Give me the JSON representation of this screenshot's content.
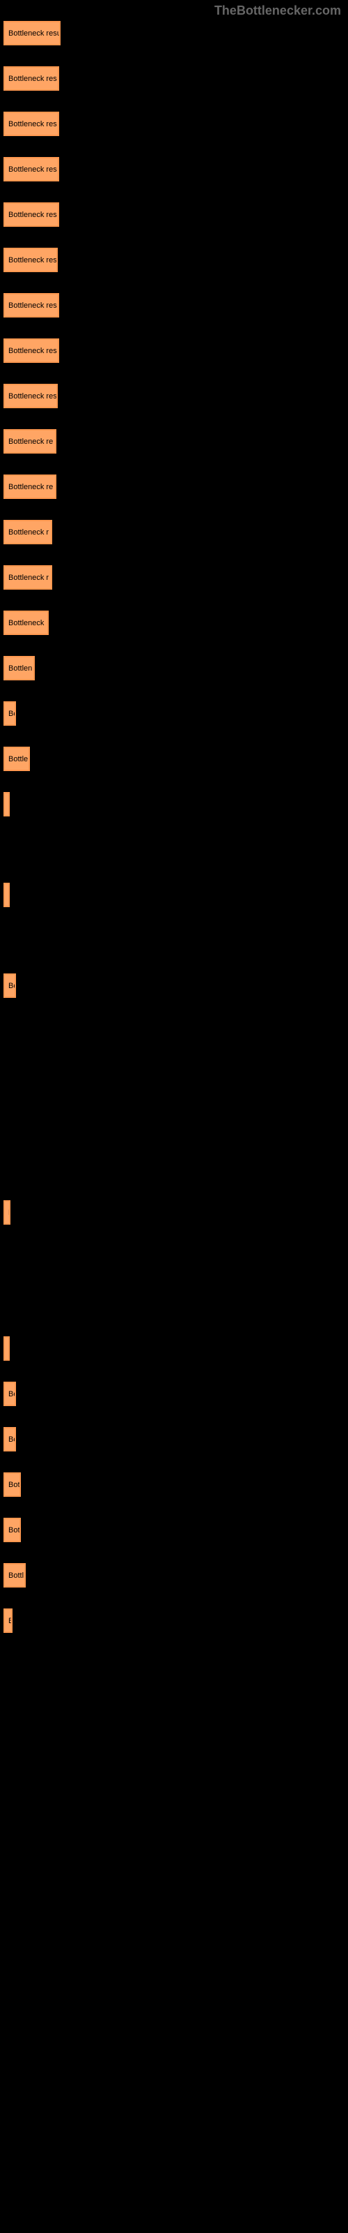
{
  "watermark": "TheBottlenecker.com",
  "chart": {
    "type": "bar",
    "background_color": "#000000",
    "bar_color": "#ffa564",
    "bar_border_color": "#ff9850",
    "text_color": "#000000",
    "font_size": 11,
    "bars": [
      {
        "label": "Bottleneck resu",
        "width": 82
      },
      {
        "label": "Bottleneck res",
        "width": 80
      },
      {
        "label": "Bottleneck res",
        "width": 80
      },
      {
        "label": "Bottleneck res",
        "width": 80
      },
      {
        "label": "Bottleneck res",
        "width": 80
      },
      {
        "label": "Bottleneck res",
        "width": 78
      },
      {
        "label": "Bottleneck res",
        "width": 80
      },
      {
        "label": "Bottleneck res",
        "width": 80
      },
      {
        "label": "Bottleneck res",
        "width": 78
      },
      {
        "label": "Bottleneck re",
        "width": 76
      },
      {
        "label": "Bottleneck re",
        "width": 76
      },
      {
        "label": "Bottleneck r",
        "width": 70
      },
      {
        "label": "Bottleneck r",
        "width": 70
      },
      {
        "label": "Bottleneck ",
        "width": 65
      },
      {
        "label": "Bottlen",
        "width": 45
      },
      {
        "label": "Bo",
        "width": 18
      },
      {
        "label": "Bottle",
        "width": 38
      },
      {
        "label": "|",
        "width": 5
      },
      {
        "label": "",
        "width": 0
      },
      {
        "label": "|",
        "width": 5
      },
      {
        "label": "",
        "width": 0
      },
      {
        "label": "Bo",
        "width": 18
      },
      {
        "label": "",
        "width": 0
      },
      {
        "label": "",
        "width": 0
      },
      {
        "label": "",
        "width": 0
      },
      {
        "label": "",
        "width": 0
      },
      {
        "label": "B",
        "width": 10
      },
      {
        "label": "",
        "width": 0
      },
      {
        "label": "",
        "width": 0
      },
      {
        "label": "|",
        "width": 5
      },
      {
        "label": "Bo",
        "width": 18
      },
      {
        "label": "Bo",
        "width": 18
      },
      {
        "label": "Bot",
        "width": 25
      },
      {
        "label": "Bot",
        "width": 25
      },
      {
        "label": "Bottl",
        "width": 32
      },
      {
        "label": "B",
        "width": 13
      }
    ]
  }
}
